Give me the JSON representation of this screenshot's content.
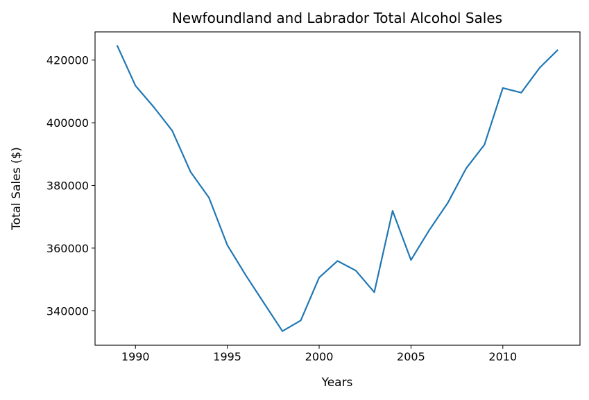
{
  "chart_data": {
    "type": "line",
    "title": "Newfoundland and Labrador Total Alcohol Sales",
    "xlabel": "Years",
    "ylabel": "Total Sales ($)",
    "xlim": [
      1987.8,
      2014.2
    ],
    "ylim": [
      329000,
      429000
    ],
    "xticks": [
      1990,
      1995,
      2000,
      2005,
      2010
    ],
    "yticks": [
      340000,
      360000,
      380000,
      400000,
      420000
    ],
    "grid": false,
    "legend": "none",
    "series": [
      {
        "color": "#1f77b4",
        "x": [
          1989,
          1990,
          1991,
          1992,
          1993,
          1994,
          1995,
          1996,
          1997,
          1998,
          1999,
          2000,
          2001,
          2002,
          2003,
          2004,
          2005,
          2006,
          2007,
          2008,
          2009,
          2010,
          2011,
          2012,
          2013
        ],
        "y": [
          424700,
          411800,
          405000,
          397500,
          384300,
          376100,
          361000,
          351400,
          342400,
          333500,
          336900,
          350600,
          355900,
          352800,
          345900,
          371900,
          356200,
          365800,
          374400,
          385400,
          393000,
          411100,
          409600,
          417500,
          423300
        ]
      }
    ]
  }
}
